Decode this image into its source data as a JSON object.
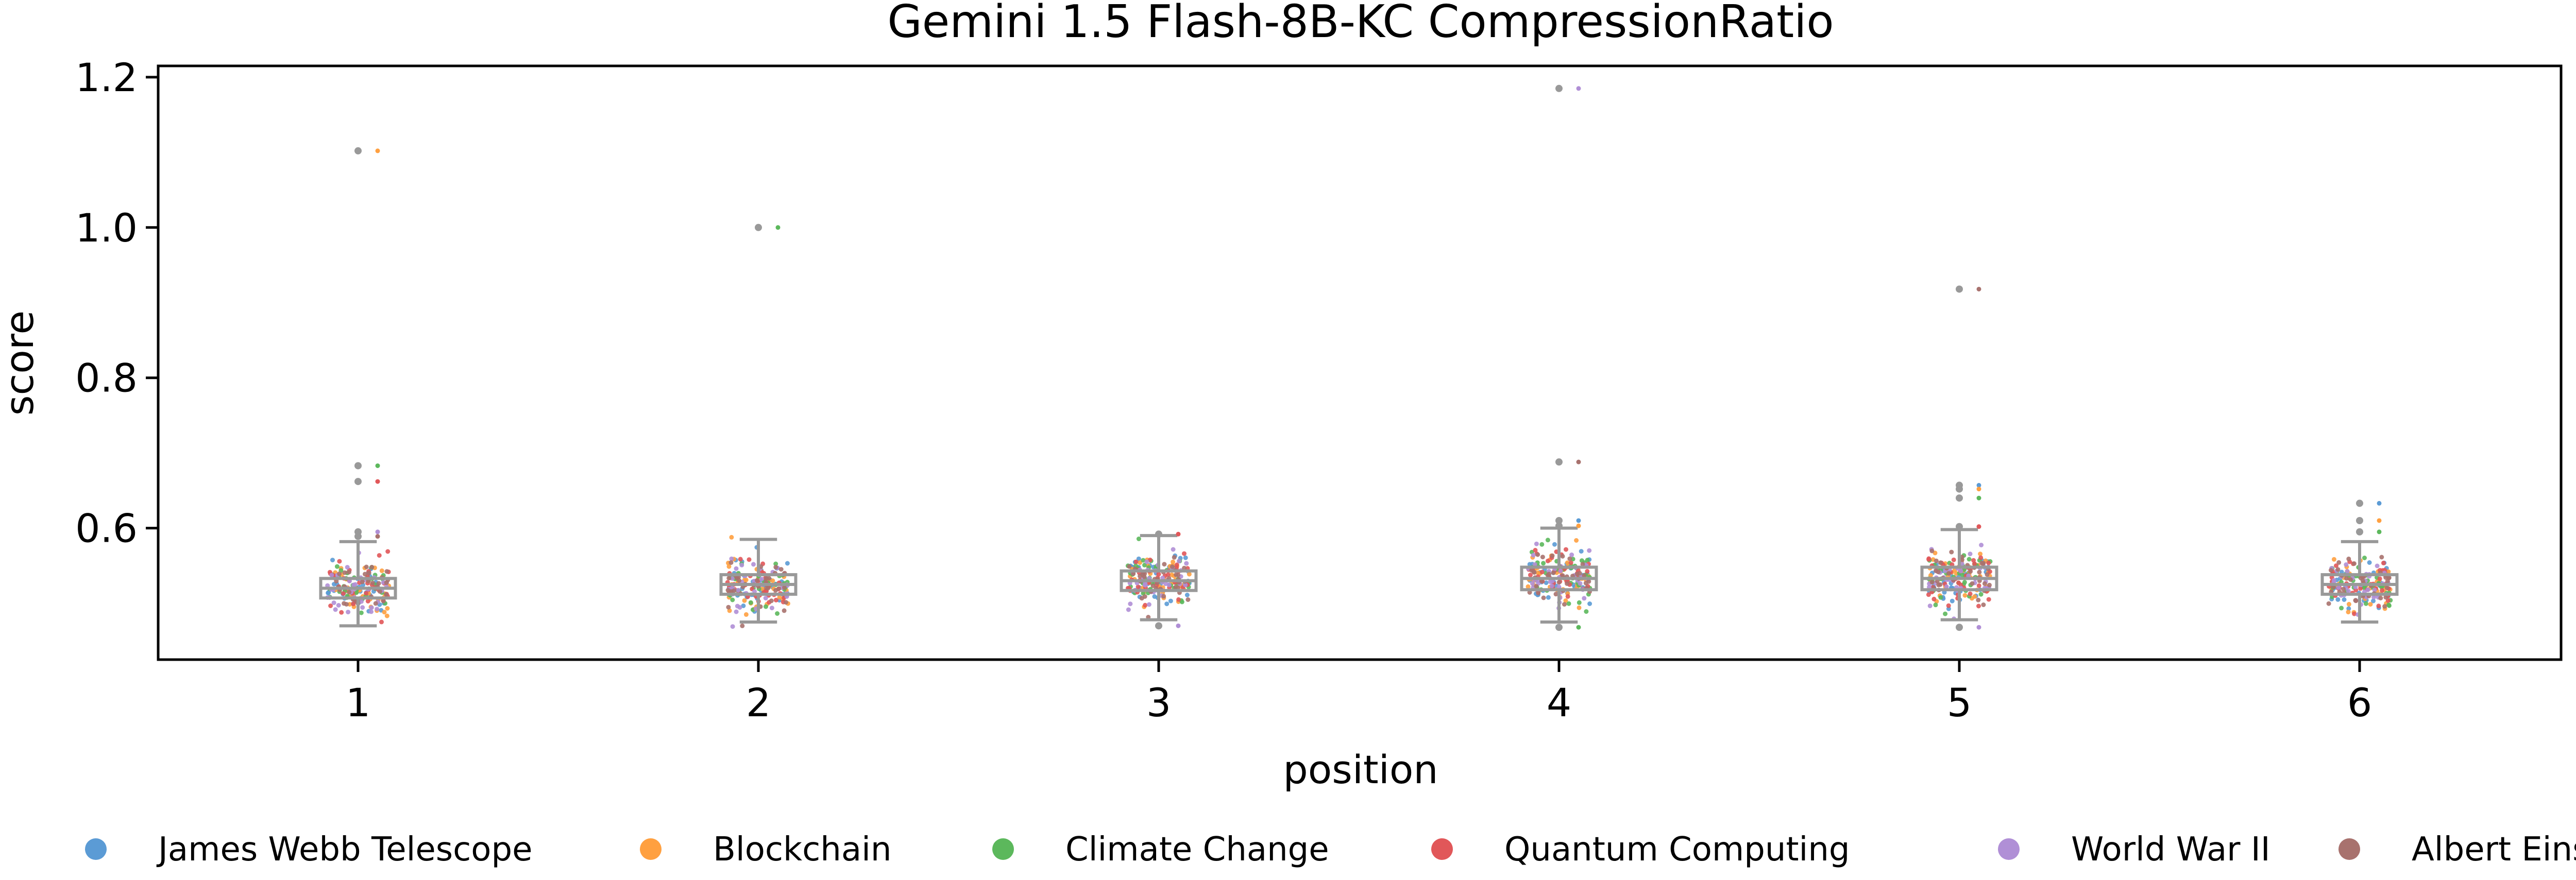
{
  "chart_data": {
    "type": "scatter",
    "title": "Gemini 1.5 Flash-8B-KC CompressionRatio",
    "xlabel": "position",
    "ylabel": "score",
    "categories": [
      "1",
      "2",
      "3",
      "4",
      "5",
      "6"
    ],
    "ylim": [
      0.425,
      1.215
    ],
    "yticks": [
      0.6,
      0.8,
      1.0,
      1.2
    ],
    "ytick_labels": [
      "0.6",
      "0.8",
      "1.0",
      "1.2"
    ],
    "grid": false,
    "legend_position": "bottom",
    "box_color": "#999999",
    "series": [
      {
        "name": "James Webb Telescope",
        "color": "#5b9bd5"
      },
      {
        "name": "Blockchain",
        "color": "#ffa040"
      },
      {
        "name": "Climate Change",
        "color": "#5cb85c"
      },
      {
        "name": "Quantum Computing",
        "color": "#e15759"
      },
      {
        "name": "World War II",
        "color": "#b08fd6"
      },
      {
        "name": "Albert Einstein",
        "color": "#a8726e"
      }
    ],
    "boxes": [
      {
        "position": "1",
        "whisker_low": 0.47,
        "q1": 0.507,
        "median": 0.52,
        "q3": 0.533,
        "whisker_high": 0.582,
        "outliers": [
          1.102,
          0.683,
          0.662,
          0.595,
          0.589
        ]
      },
      {
        "position": "2",
        "whisker_low": 0.475,
        "q1": 0.512,
        "median": 0.525,
        "q3": 0.538,
        "whisker_high": 0.585,
        "outliers": [
          1.0
        ]
      },
      {
        "position": "3",
        "whisker_low": 0.478,
        "q1": 0.517,
        "median": 0.53,
        "q3": 0.543,
        "whisker_high": 0.59,
        "outliers": [
          0.592,
          0.47
        ]
      },
      {
        "position": "4",
        "whisker_low": 0.475,
        "q1": 0.518,
        "median": 0.533,
        "q3": 0.548,
        "whisker_high": 0.6,
        "outliers": [
          1.185,
          0.688,
          0.61,
          0.603,
          0.468
        ]
      },
      {
        "position": "5",
        "whisker_low": 0.478,
        "q1": 0.518,
        "median": 0.533,
        "q3": 0.548,
        "whisker_high": 0.598,
        "outliers": [
          0.918,
          0.657,
          0.652,
          0.64,
          0.602,
          0.468
        ]
      },
      {
        "position": "6",
        "whisker_low": 0.475,
        "q1": 0.512,
        "median": 0.525,
        "q3": 0.538,
        "whisker_high": 0.582,
        "outliers": [
          0.633,
          0.61,
          0.595
        ]
      }
    ],
    "points_per_series_per_position": 35,
    "spread": [
      0.0185,
      0.0165,
      0.017,
      0.019,
      0.019,
      0.0165
    ]
  }
}
